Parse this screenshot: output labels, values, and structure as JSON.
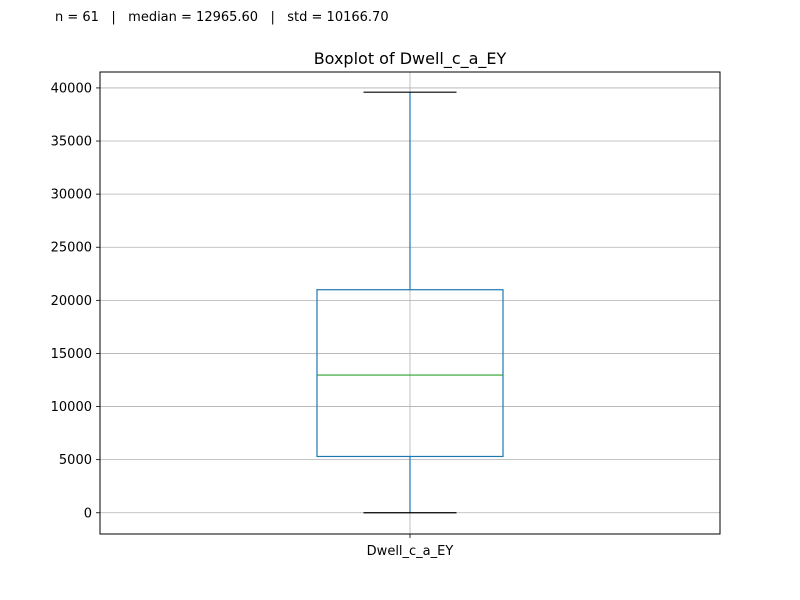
{
  "stats": {
    "n_label": "n = 61",
    "median_label": "median = 12965.60",
    "std_label": "std = 10166.70",
    "separator": "|"
  },
  "chart_data": {
    "type": "boxplot",
    "title": "Boxplot of Dwell_c_a_EY",
    "xlabel": "",
    "ylabel": "",
    "categories": [
      "Dwell_c_a_EY"
    ],
    "ylim": [
      -2000,
      41500
    ],
    "yticks": [
      0,
      5000,
      10000,
      15000,
      20000,
      25000,
      30000,
      35000,
      40000
    ],
    "grid": true,
    "boxes": [
      {
        "category": "Dwell_c_a_EY",
        "whisker_low": 0,
        "q1": 5300,
        "median": 12965.6,
        "q3": 21000,
        "whisker_high": 39600
      }
    ],
    "colors": {
      "box": "#1f77b4",
      "median": "#2ca02c",
      "whisker": "#1f77b4",
      "cap": "#000000",
      "grid": "#b0b0b0"
    }
  }
}
